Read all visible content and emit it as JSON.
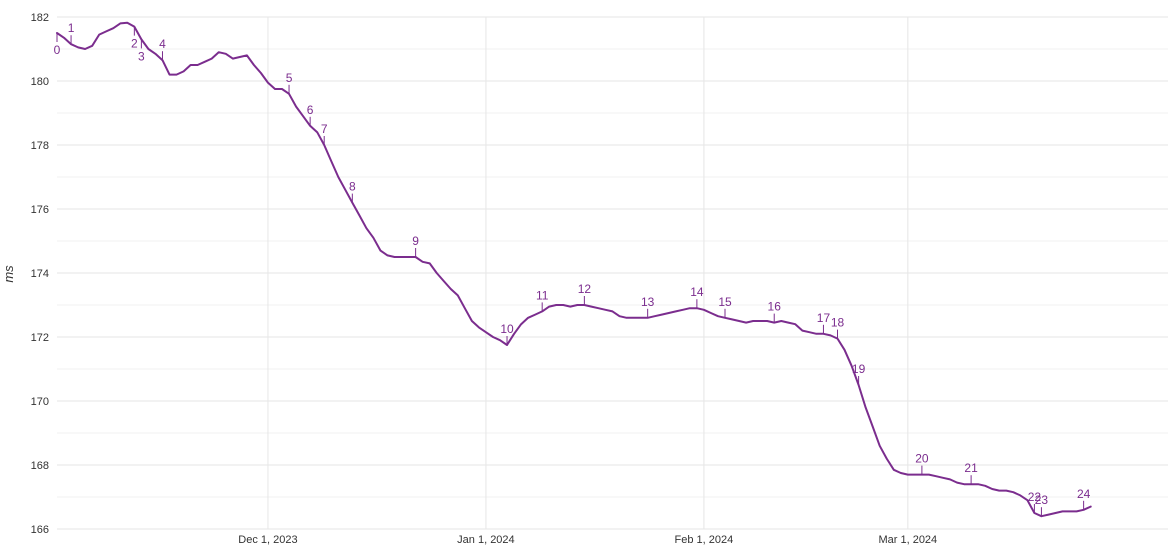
{
  "chart_data": {
    "type": "line",
    "title": "",
    "xlabel": "",
    "ylabel": "ms",
    "ylim": [
      166,
      182
    ],
    "xlim": [
      "2023-11-01",
      "2024-04-07"
    ],
    "grid": true,
    "colors": {
      "line": "#7b2d8e",
      "annotation": "#7b2d8e",
      "grid": "#e6e6e6",
      "axis_text": "#333333"
    },
    "yticks": [
      166,
      168,
      170,
      172,
      174,
      176,
      178,
      180,
      182
    ],
    "xticks": [
      {
        "date": "2023-12-01",
        "label": "Dec 1, 2023"
      },
      {
        "date": "2024-01-01",
        "label": "Jan 1, 2024"
      },
      {
        "date": "2024-02-01",
        "label": "Feb 1, 2024"
      },
      {
        "date": "2024-03-01",
        "label": "Mar 1, 2024"
      }
    ],
    "series": [
      {
        "name": "",
        "points": [
          [
            "2023-11-01",
            181.5
          ],
          [
            "2023-11-02",
            181.35
          ],
          [
            "2023-11-03",
            181.15
          ],
          [
            "2023-11-04",
            181.05
          ],
          [
            "2023-11-05",
            181.0
          ],
          [
            "2023-11-06",
            181.1
          ],
          [
            "2023-11-07",
            181.45
          ],
          [
            "2023-11-08",
            181.55
          ],
          [
            "2023-11-09",
            181.65
          ],
          [
            "2023-11-10",
            181.8
          ],
          [
            "2023-11-11",
            181.82
          ],
          [
            "2023-11-12",
            181.7
          ],
          [
            "2023-11-13",
            181.3
          ],
          [
            "2023-11-14",
            181.0
          ],
          [
            "2023-11-15",
            180.85
          ],
          [
            "2023-11-16",
            180.65
          ],
          [
            "2023-11-17",
            180.2
          ],
          [
            "2023-11-18",
            180.2
          ],
          [
            "2023-11-19",
            180.3
          ],
          [
            "2023-11-20",
            180.5
          ],
          [
            "2023-11-21",
            180.5
          ],
          [
            "2023-11-22",
            180.6
          ],
          [
            "2023-11-23",
            180.7
          ],
          [
            "2023-11-24",
            180.9
          ],
          [
            "2023-11-25",
            180.85
          ],
          [
            "2023-11-26",
            180.7
          ],
          [
            "2023-11-27",
            180.75
          ],
          [
            "2023-11-28",
            180.8
          ],
          [
            "2023-11-29",
            180.5
          ],
          [
            "2023-11-30",
            180.25
          ],
          [
            "2023-12-01",
            179.95
          ],
          [
            "2023-12-02",
            179.75
          ],
          [
            "2023-12-03",
            179.75
          ],
          [
            "2023-12-04",
            179.6
          ],
          [
            "2023-12-05",
            179.2
          ],
          [
            "2023-12-06",
            178.9
          ],
          [
            "2023-12-07",
            178.6
          ],
          [
            "2023-12-08",
            178.4
          ],
          [
            "2023-12-09",
            178.0
          ],
          [
            "2023-12-10",
            177.5
          ],
          [
            "2023-12-11",
            177.0
          ],
          [
            "2023-12-12",
            176.6
          ],
          [
            "2023-12-13",
            176.2
          ],
          [
            "2023-12-14",
            175.8
          ],
          [
            "2023-12-15",
            175.4
          ],
          [
            "2023-12-16",
            175.1
          ],
          [
            "2023-12-17",
            174.7
          ],
          [
            "2023-12-18",
            174.55
          ],
          [
            "2023-12-19",
            174.5
          ],
          [
            "2023-12-20",
            174.5
          ],
          [
            "2023-12-21",
            174.5
          ],
          [
            "2023-12-22",
            174.5
          ],
          [
            "2023-12-23",
            174.35
          ],
          [
            "2023-12-24",
            174.3
          ],
          [
            "2023-12-25",
            174.0
          ],
          [
            "2023-12-26",
            173.75
          ],
          [
            "2023-12-27",
            173.5
          ],
          [
            "2023-12-28",
            173.3
          ],
          [
            "2023-12-29",
            172.9
          ],
          [
            "2023-12-30",
            172.5
          ],
          [
            "2023-12-31",
            172.3
          ],
          [
            "2024-01-01",
            172.15
          ],
          [
            "2024-01-02",
            172.0
          ],
          [
            "2024-01-03",
            171.9
          ],
          [
            "2024-01-04",
            171.75
          ],
          [
            "2024-01-05",
            172.1
          ],
          [
            "2024-01-06",
            172.4
          ],
          [
            "2024-01-07",
            172.6
          ],
          [
            "2024-01-08",
            172.7
          ],
          [
            "2024-01-09",
            172.8
          ],
          [
            "2024-01-10",
            172.95
          ],
          [
            "2024-01-11",
            173.0
          ],
          [
            "2024-01-12",
            173.0
          ],
          [
            "2024-01-13",
            172.95
          ],
          [
            "2024-01-14",
            173.0
          ],
          [
            "2024-01-15",
            173.0
          ],
          [
            "2024-01-16",
            172.95
          ],
          [
            "2024-01-17",
            172.9
          ],
          [
            "2024-01-18",
            172.85
          ],
          [
            "2024-01-19",
            172.8
          ],
          [
            "2024-01-20",
            172.65
          ],
          [
            "2024-01-21",
            172.6
          ],
          [
            "2024-01-22",
            172.6
          ],
          [
            "2024-01-23",
            172.6
          ],
          [
            "2024-01-24",
            172.6
          ],
          [
            "2024-01-25",
            172.65
          ],
          [
            "2024-01-26",
            172.7
          ],
          [
            "2024-01-27",
            172.75
          ],
          [
            "2024-01-28",
            172.8
          ],
          [
            "2024-01-29",
            172.85
          ],
          [
            "2024-01-30",
            172.9
          ],
          [
            "2024-01-31",
            172.9
          ],
          [
            "2024-02-01",
            172.85
          ],
          [
            "2024-02-02",
            172.75
          ],
          [
            "2024-02-03",
            172.65
          ],
          [
            "2024-02-04",
            172.6
          ],
          [
            "2024-02-05",
            172.55
          ],
          [
            "2024-02-06",
            172.5
          ],
          [
            "2024-02-07",
            172.45
          ],
          [
            "2024-02-08",
            172.5
          ],
          [
            "2024-02-09",
            172.5
          ],
          [
            "2024-02-10",
            172.5
          ],
          [
            "2024-02-11",
            172.45
          ],
          [
            "2024-02-12",
            172.5
          ],
          [
            "2024-02-13",
            172.45
          ],
          [
            "2024-02-14",
            172.4
          ],
          [
            "2024-02-15",
            172.2
          ],
          [
            "2024-02-16",
            172.15
          ],
          [
            "2024-02-17",
            172.1
          ],
          [
            "2024-02-18",
            172.1
          ],
          [
            "2024-02-19",
            172.05
          ],
          [
            "2024-02-20",
            171.95
          ],
          [
            "2024-02-21",
            171.6
          ],
          [
            "2024-02-22",
            171.1
          ],
          [
            "2024-02-23",
            170.5
          ],
          [
            "2024-02-24",
            169.8
          ],
          [
            "2024-02-25",
            169.2
          ],
          [
            "2024-02-26",
            168.6
          ],
          [
            "2024-02-27",
            168.2
          ],
          [
            "2024-02-28",
            167.85
          ],
          [
            "2024-02-29",
            167.75
          ],
          [
            "2024-03-01",
            167.7
          ],
          [
            "2024-03-02",
            167.7
          ],
          [
            "2024-03-03",
            167.7
          ],
          [
            "2024-03-04",
            167.7
          ],
          [
            "2024-03-05",
            167.65
          ],
          [
            "2024-03-06",
            167.6
          ],
          [
            "2024-03-07",
            167.55
          ],
          [
            "2024-03-08",
            167.45
          ],
          [
            "2024-03-09",
            167.4
          ],
          [
            "2024-03-10",
            167.4
          ],
          [
            "2024-03-11",
            167.4
          ],
          [
            "2024-03-12",
            167.35
          ],
          [
            "2024-03-13",
            167.25
          ],
          [
            "2024-03-14",
            167.2
          ],
          [
            "2024-03-15",
            167.2
          ],
          [
            "2024-03-16",
            167.15
          ],
          [
            "2024-03-17",
            167.05
          ],
          [
            "2024-03-18",
            166.9
          ],
          [
            "2024-03-19",
            166.5
          ],
          [
            "2024-03-20",
            166.4
          ],
          [
            "2024-03-21",
            166.45
          ],
          [
            "2024-03-22",
            166.5
          ],
          [
            "2024-03-23",
            166.55
          ],
          [
            "2024-03-24",
            166.55
          ],
          [
            "2024-03-25",
            166.55
          ],
          [
            "2024-03-26",
            166.6
          ],
          [
            "2024-03-27",
            166.7
          ]
        ]
      }
    ],
    "annotations": [
      {
        "label": "0",
        "date": "2023-11-01",
        "placement": "below"
      },
      {
        "label": "1",
        "date": "2023-11-03",
        "placement": "above"
      },
      {
        "label": "2",
        "date": "2023-11-12",
        "placement": "below"
      },
      {
        "label": "3",
        "date": "2023-11-13",
        "placement": "below"
      },
      {
        "label": "4",
        "date": "2023-11-16",
        "placement": "above"
      },
      {
        "label": "5",
        "date": "2023-12-04",
        "placement": "above"
      },
      {
        "label": "6",
        "date": "2023-12-07",
        "placement": "above"
      },
      {
        "label": "7",
        "date": "2023-12-09",
        "placement": "above"
      },
      {
        "label": "8",
        "date": "2023-12-13",
        "placement": "above"
      },
      {
        "label": "9",
        "date": "2023-12-22",
        "placement": "above"
      },
      {
        "label": "10",
        "date": "2024-01-04",
        "placement": "above"
      },
      {
        "label": "11",
        "date": "2024-01-09",
        "placement": "above"
      },
      {
        "label": "12",
        "date": "2024-01-15",
        "placement": "above"
      },
      {
        "label": "13",
        "date": "2024-01-24",
        "placement": "above"
      },
      {
        "label": "14",
        "date": "2024-01-31",
        "placement": "above"
      },
      {
        "label": "15",
        "date": "2024-02-04",
        "placement": "above"
      },
      {
        "label": "16",
        "date": "2024-02-11",
        "placement": "above"
      },
      {
        "label": "17",
        "date": "2024-02-18",
        "placement": "above"
      },
      {
        "label": "18",
        "date": "2024-02-20",
        "placement": "above"
      },
      {
        "label": "19",
        "date": "2024-02-23",
        "placement": "above"
      },
      {
        "label": "20",
        "date": "2024-03-03",
        "placement": "above"
      },
      {
        "label": "21",
        "date": "2024-03-10",
        "placement": "above"
      },
      {
        "label": "22",
        "date": "2024-03-19",
        "placement": "above"
      },
      {
        "label": "23",
        "date": "2024-03-20",
        "placement": "above"
      },
      {
        "label": "24",
        "date": "2024-03-26",
        "placement": "above"
      }
    ]
  }
}
